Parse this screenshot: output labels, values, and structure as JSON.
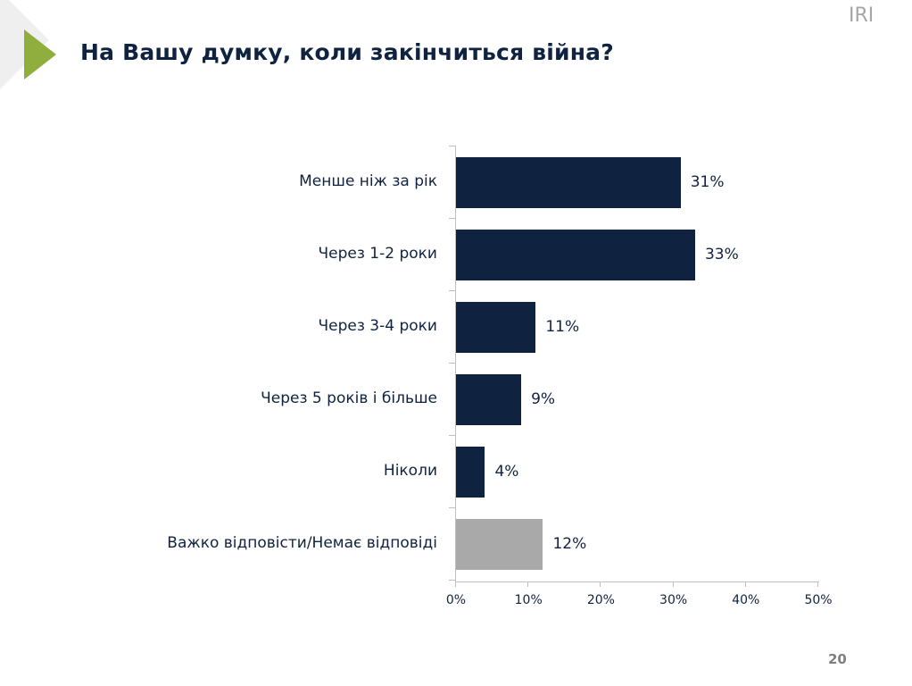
{
  "header": {
    "title": "На Вашу думку, коли закінчиться війна?",
    "logo": "IRI"
  },
  "footer": {
    "page_number": "20"
  },
  "colors": {
    "primary_bar": "#0f2340",
    "secondary_bar": "#a9a9a9",
    "accent_triangle": "#8fae3e",
    "text": "#0f2340"
  },
  "chart_data": {
    "type": "bar",
    "orientation": "horizontal",
    "title": "На Вашу думку, коли закінчиться війна?",
    "categories": [
      "Менше ніж за рік",
      "Через 1-2 роки",
      "Через 3-4 роки",
      "Через 5 років і більше",
      "Ніколи",
      "Важко відповісти/Немає відповіді"
    ],
    "values": [
      31,
      33,
      11,
      9,
      4,
      12
    ],
    "value_labels": [
      "31%",
      "33%",
      "11%",
      "9%",
      "4%",
      "12%"
    ],
    "bar_colors": [
      "#0f2340",
      "#0f2340",
      "#0f2340",
      "#0f2340",
      "#0f2340",
      "#a9a9a9"
    ],
    "xlabel": "",
    "ylabel": "",
    "xlim": [
      0,
      50
    ],
    "x_ticks": [
      "0%",
      "10%",
      "20%",
      "30%",
      "40%",
      "50%"
    ],
    "grid": false,
    "legend": null
  }
}
